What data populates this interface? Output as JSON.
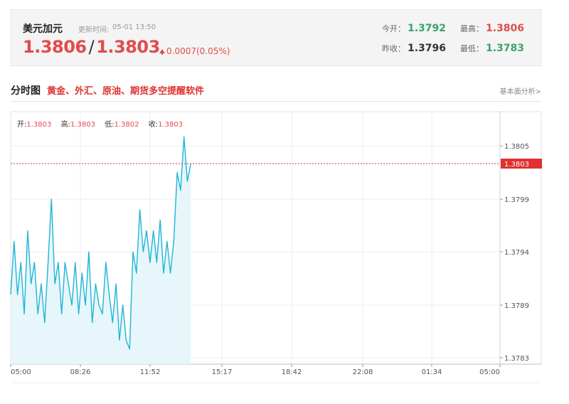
{
  "quote": {
    "name": "美元加元",
    "time_label": "更新时间:",
    "time": "05-01 13:50",
    "price_bid": "1.3806",
    "price_ask": "1.3803",
    "change": "0.0007(0.05%)",
    "open_label": "今开：",
    "open": "1.3792",
    "high_label": "最高：",
    "high": "1.3806",
    "prev_close_label": "昨收：",
    "prev_close": "1.3796",
    "low_label": "最低：",
    "low": "1.3783"
  },
  "section": {
    "title": "分时图",
    "subtitle": "黄金、外汇、原油、期货多空提醒软件",
    "link": "基本面分析>"
  },
  "ohlc": {
    "open_label": "开:",
    "open": "1.3803",
    "high_label": "高:",
    "high": "1.3803",
    "low_label": "低:",
    "low": "1.3802",
    "close_label": "收:",
    "close": "1.3803"
  },
  "colors": {
    "line": "#1fb5d6",
    "fill": "#e6f6fb",
    "up": "#e14c4c",
    "down": "#3aa36a",
    "current_price_tag": "#e0302f"
  },
  "chart_data": {
    "type": "area",
    "title": "",
    "xlabel": "",
    "ylabel": "",
    "x_ticks": [
      "05:00",
      "08:26",
      "11:52",
      "15:17",
      "18:42",
      "22:08",
      "01:34",
      "05:00"
    ],
    "y_ticks": [
      "1.3783",
      "1.3789",
      "1.3794",
      "1.3799",
      "1.3805"
    ],
    "ylim": [
      1.3783,
      1.3805
    ],
    "current_price": "1.3803",
    "grid": true,
    "series": [
      {
        "x": [
          "05:00",
          "05:10",
          "05:20",
          "05:30",
          "05:40",
          "05:50",
          "06:00",
          "06:10",
          "06:20",
          "06:30",
          "06:40",
          "06:50",
          "07:00",
          "07:10",
          "07:20",
          "07:30",
          "07:40",
          "07:50",
          "08:00",
          "08:10",
          "08:20",
          "08:30",
          "08:40",
          "08:50",
          "09:00",
          "09:10",
          "09:20",
          "09:30",
          "09:40",
          "09:50",
          "10:00",
          "10:10",
          "10:20",
          "10:30",
          "10:40",
          "10:50",
          "11:00",
          "11:10",
          "11:20",
          "11:30",
          "11:40",
          "11:50",
          "12:00",
          "12:10",
          "12:20",
          "12:30",
          "12:40",
          "12:50",
          "13:00",
          "13:10",
          "13:20",
          "13:30",
          "13:40",
          "13:50"
        ],
        "values": [
          1.379,
          1.3795,
          1.379,
          1.3793,
          1.3788,
          1.3796,
          1.3791,
          1.3793,
          1.3788,
          1.3791,
          1.3787,
          1.3793,
          1.3799,
          1.3791,
          1.3793,
          1.3788,
          1.3793,
          1.3791,
          1.3789,
          1.3793,
          1.3788,
          1.3792,
          1.3789,
          1.3794,
          1.3787,
          1.3791,
          1.3789,
          1.3788,
          1.3793,
          1.379,
          1.3787,
          1.3791,
          1.3785,
          1.3789,
          1.3785,
          1.3784,
          1.3794,
          1.3792,
          1.3798,
          1.3794,
          1.3796,
          1.3793,
          1.3796,
          1.3793,
          1.3797,
          1.3792,
          1.3795,
          1.3792,
          1.3795,
          1.3802,
          1.38,
          1.3806,
          1.3801,
          1.3803
        ]
      }
    ]
  }
}
